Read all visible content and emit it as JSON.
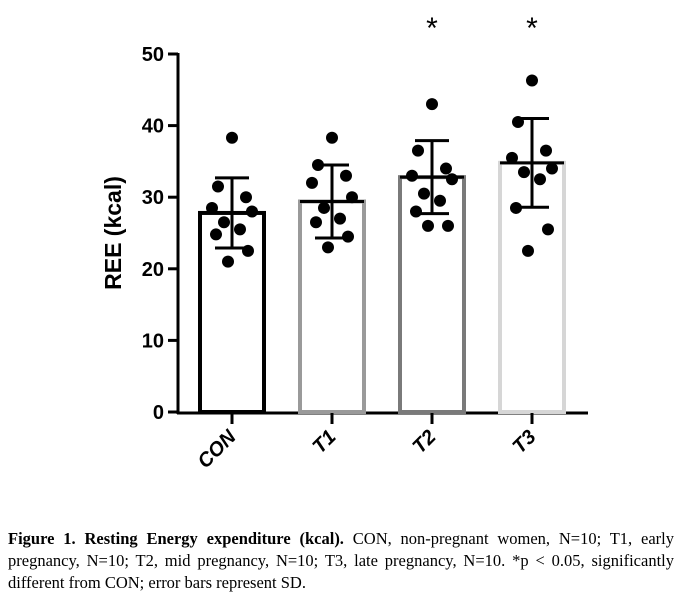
{
  "chart_data": {
    "type": "bar",
    "ylabel": "REE (kcal)",
    "ylim": [
      0,
      50
    ],
    "yticks": [
      "0",
      "10",
      "20",
      "30",
      "40",
      "50"
    ],
    "categories": [
      "CON",
      "T1",
      "T2",
      "T3"
    ],
    "values": [
      27.8,
      29.4,
      32.8,
      34.8
    ],
    "sd": [
      4.9,
      5.1,
      5.1,
      6.2
    ],
    "bar_colors": [
      "#000000",
      "#9a9a9a",
      "#7a7a7a",
      "#d6d6d6"
    ],
    "significance": [
      "",
      "",
      "*",
      "*"
    ],
    "points": [
      [
        38.3,
        31.5,
        30.0,
        28.5,
        28.0,
        26.5,
        25.5,
        24.8,
        22.5,
        21.0
      ],
      [
        38.3,
        34.5,
        33.0,
        32.0,
        30.0,
        28.5,
        27.0,
        26.5,
        24.5,
        23.0
      ],
      [
        43.0,
        36.5,
        34.0,
        33.0,
        32.5,
        30.5,
        29.5,
        28.0,
        26.0,
        26.0
      ],
      [
        46.3,
        40.5,
        36.5,
        35.5,
        34.0,
        33.5,
        32.5,
        28.5,
        25.5,
        22.5
      ]
    ]
  },
  "caption": {
    "bold": "Figure 1. Resting Energy expenditure (kcal).",
    "text": " CON, non-pregnant women, N=10; T1, early pregnancy, N=10; T2, mid pregnancy, N=10; T3, late pregnancy, N=10. *p < 0.05, significantly different from CON; error bars represent SD."
  }
}
